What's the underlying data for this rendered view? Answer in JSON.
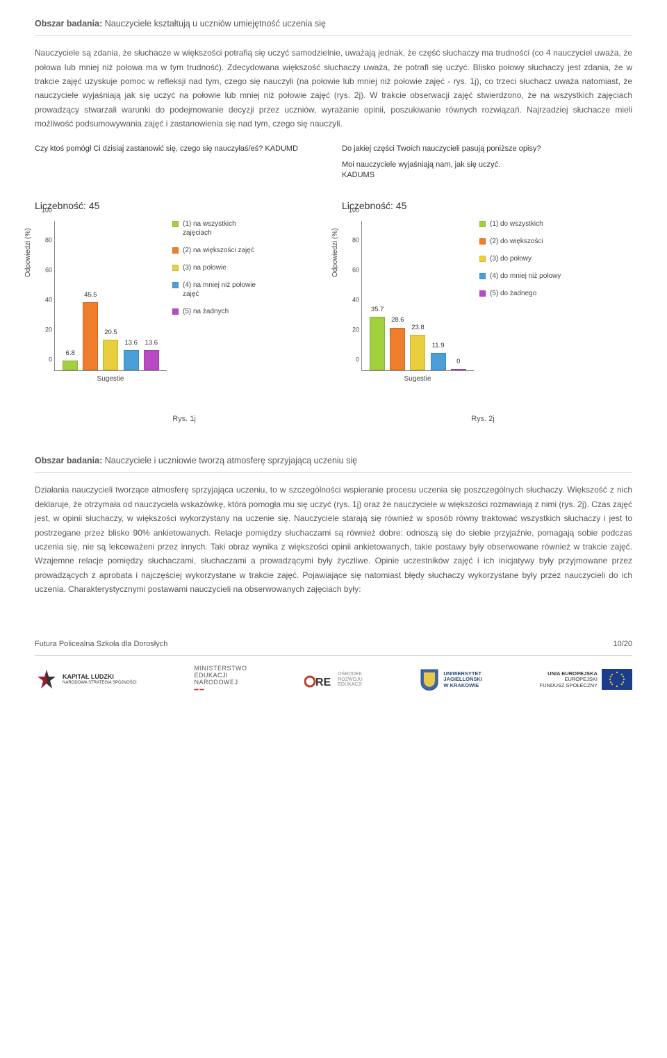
{
  "section1": {
    "title_prefix": "Obszar badania:",
    "title_text": "Nauczyciele kształtują u uczniów umiejętność uczenia się",
    "body": "Nauczyciele są zdania, że słuchacze w większości potrafią się uczyć samodzielnie, uważają jednak, że część słuchaczy ma trudności (co 4 nauczyciel uważa, że połowa lub mniej niż połowa ma w tym trudność). Zdecydowana większość słuchaczy uważa, że potrafi się uczyć. Blisko połowy słuchaczy jest zdania, że w trakcie zajęć uzyskuje pomoc w refleksji nad tym, czego się nauczyli (na połowie lub mniej niż połowie zajęć - rys. 1j), co trzeci słuchacz uważa natomiast, że nauczyciele wyjaśniają jak się uczyć na połowie lub mniej niż połowie zajęć (rys. 2j). W trakcie obserwacji zajęć stwierdzono, że na wszystkich zajęciach prowadzący stwarzali warunki do podejmowanie decyzji przez uczniów, wyrażanie opinii, poszukiwanie równych rozwiązań. Najrzadziej słuchacze mieli możliwość podsumowywania zajęć i zastanowienia się nad tym, czego się nauczyli."
  },
  "chart1": {
    "question": "Czy ktoś pomógł Ci dzisiaj zastanowić się, czego się nauczyłaś/eś? KADUMD",
    "count_label": "Liczebność: 45",
    "y_label": "Odpowiedzi (%)",
    "x_label": "Sugestie",
    "ymax": 100,
    "yticks": [
      0,
      20,
      40,
      60,
      80,
      100
    ],
    "bars": [
      {
        "value": 6.8,
        "label": "6.8",
        "color": "#a2cf3f"
      },
      {
        "value": 45.5,
        "label": "45.5",
        "color": "#ef7e2c"
      },
      {
        "value": 20.5,
        "label": "20.5",
        "color": "#e9cf3e"
      },
      {
        "value": 13.6,
        "label": "13.6",
        "color": "#4a9fd8"
      },
      {
        "value": 13.6,
        "label": "13.6",
        "color": "#b84bc4"
      }
    ],
    "legend": [
      {
        "color": "#a2cf3f",
        "text": "(1) na wszystkich zajęciach"
      },
      {
        "color": "#ef7e2c",
        "text": "(2) na większości zajęć"
      },
      {
        "color": "#e9cf3e",
        "text": "(3) na połowie"
      },
      {
        "color": "#4a9fd8",
        "text": "(4) na mniej niż połowie zajęć"
      },
      {
        "color": "#b84bc4",
        "text": "(5) na żadnych"
      }
    ],
    "caption": "Rys. 1j"
  },
  "chart2": {
    "question_line1": "Do jakiej części Twoich nauczycieli pasują poniższe opisy?",
    "question_line2": "Moi nauczyciele wyjaśniają nam, jak się uczyć.",
    "question_line3": "KADUMS",
    "count_label": "Liczebność: 45",
    "y_label": "Odpowiedzi (%)",
    "x_label": "Sugestie",
    "ymax": 100,
    "yticks": [
      0,
      20,
      40,
      60,
      80,
      100
    ],
    "bars": [
      {
        "value": 35.7,
        "label": "35.7",
        "color": "#a2cf3f"
      },
      {
        "value": 28.6,
        "label": "28.6",
        "color": "#ef7e2c"
      },
      {
        "value": 23.8,
        "label": "23.8",
        "color": "#e9cf3e"
      },
      {
        "value": 11.9,
        "label": "11.9",
        "color": "#4a9fd8"
      },
      {
        "value": 0,
        "label": "0",
        "color": "#b84bc4"
      }
    ],
    "legend": [
      {
        "color": "#a2cf3f",
        "text": "(1) do wszystkich"
      },
      {
        "color": "#ef7e2c",
        "text": "(2) do większości"
      },
      {
        "color": "#e9cf3e",
        "text": "(3) do połowy"
      },
      {
        "color": "#4a9fd8",
        "text": "(4) do mniej niż połowy"
      },
      {
        "color": "#b84bc4",
        "text": "(5) do żadnego"
      }
    ],
    "caption": "Rys. 2j"
  },
  "section2": {
    "title_prefix": "Obszar badania:",
    "title_text": "Nauczyciele i uczniowie tworzą atmosferę sprzyjającą uczeniu się",
    "body": "Działania nauczycieli tworzące atmosferę sprzyjająca uczeniu, to w szczególności wspieranie procesu uczenia się poszczególnych słuchaczy. Większość z nich deklaruje, że otrzymała od nauczyciela wskazówkę, która pomogła mu się uczyć (rys. 1j) oraz że nauczyciele w większości rozmawiają z nimi (rys. 2j). Czas zajęć jest, w opinii słuchaczy, w większości wykorzystany na uczenie się. Nauczyciele starają się również w sposób równy traktować wszystkich słuchaczy i jest to postrzegane przez blisko 90% ankietowanych. Relacje pomiędzy słuchaczami są również dobre: odnoszą się do siebie przyjaźnie, pomagają sobie podczas uczenia się, nie są lekceważeni przez innych. Taki obraz wynika z większości opinii ankietowanych, takie postawy były obserwowane również w trakcie zajęć. Wzajemne relacje pomiędzy słuchaczami, słuchaczami a prowadzącymi były życzliwe. Opinie uczestników zajęć i ich inicjatywy były przyjmowane przez prowadzących z aprobata i najczęściej wykorzystane w trakcie zajęć. Pojawiające się natomiast błędy słuchaczy wykorzystane były przez nauczycieli do ich uczenia. Charakterystycznymi postawami nauczycieli na obserwowanych zajęciach były:"
  },
  "footer": {
    "left": "Futura Policealna Szkoła dla Dorosłych",
    "right": "10/20"
  },
  "logos": {
    "l1a": "KAPITAŁ LUDZKI",
    "l1b": "NARODOWA STRATEGIA SPÓJNOŚCI",
    "l2a": "MINISTERSTWO",
    "l2b": "EDUKACJI",
    "l2c": "NARODOWEJ",
    "l3": "ORE",
    "l3a": "OŚRODEK",
    "l3b": "ROZWOJU",
    "l3c": "EDUKACJI",
    "l4a": "UNIWERSYTET",
    "l4b": "JAGIELLOŃSKI",
    "l4c": "W KRAKOWIE",
    "l5a": "UNIA EUROPEJSKA",
    "l5b": "EUROPEJSKI",
    "l5c": "FUNDUSZ SPOŁECZNY"
  }
}
